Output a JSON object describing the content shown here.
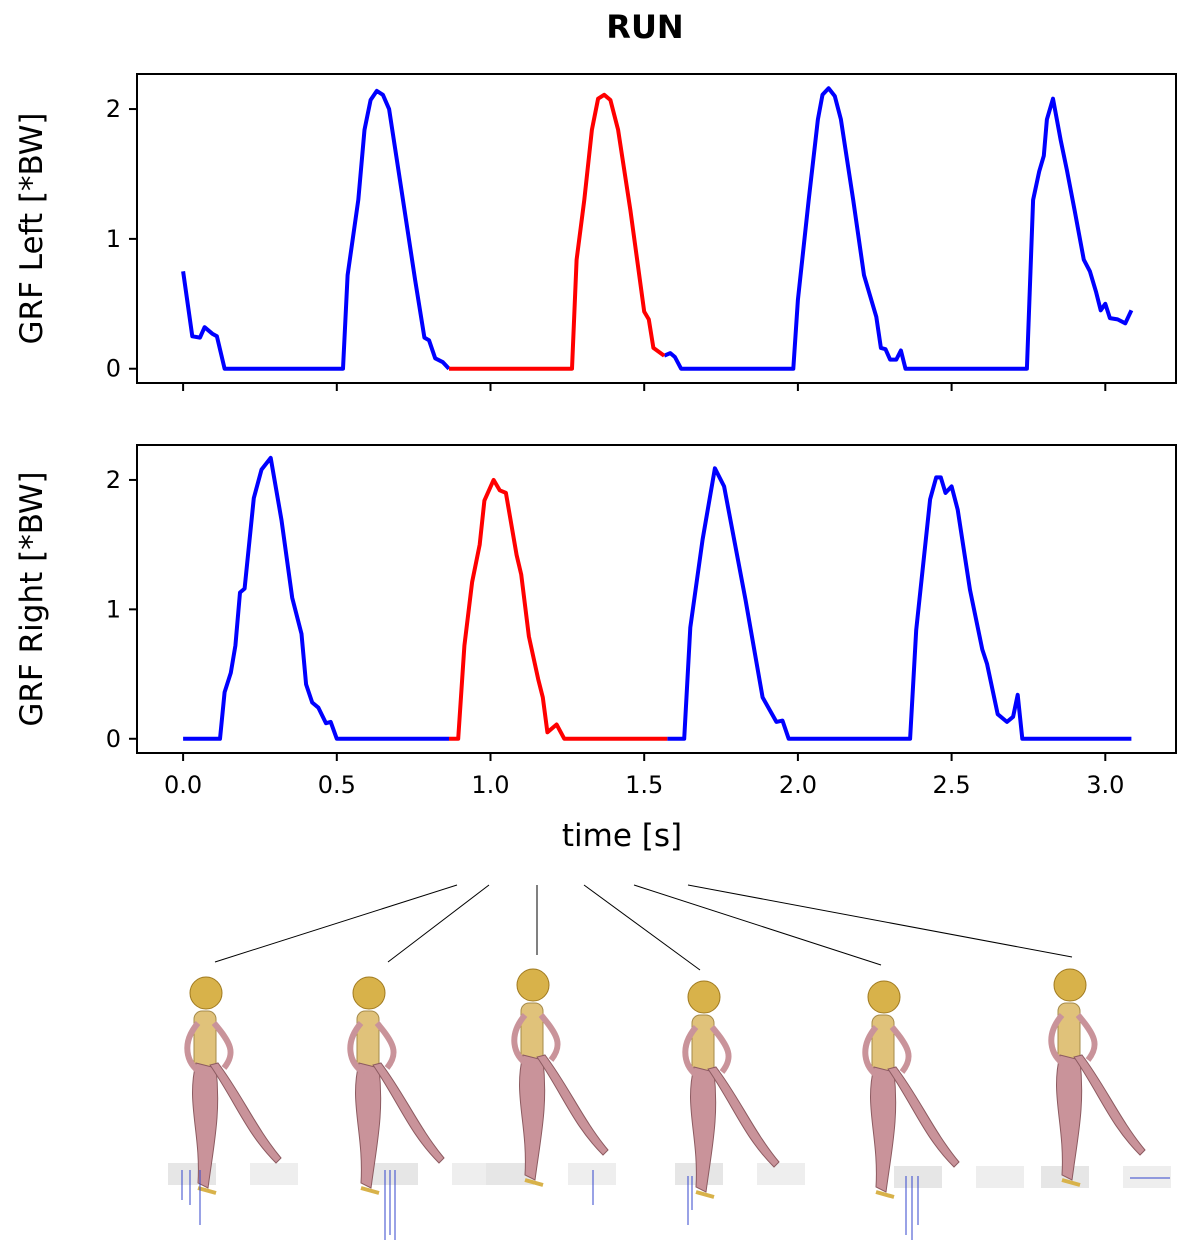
{
  "chart_data": [
    {
      "type": "line",
      "title": "RUN",
      "ylabel": "GRF Left [*BW]",
      "x": [
        0,
        0.03,
        0.055,
        0.07,
        0.095,
        0.11,
        0.135,
        0.52,
        0.535,
        0.57,
        0.59,
        0.61,
        0.63,
        0.65,
        0.67,
        0.71,
        0.755,
        0.785,
        0.8,
        0.82,
        0.845,
        0.865,
        1.265,
        1.28,
        1.305,
        1.33,
        1.35,
        1.37,
        1.39,
        1.415,
        1.455,
        1.5,
        1.515,
        1.53,
        1.565,
        1.585,
        1.6,
        1.62,
        1.985,
        2.0,
        2.035,
        2.065,
        2.08,
        2.1,
        2.12,
        2.14,
        2.18,
        2.215,
        2.255,
        2.27,
        2.285,
        2.3,
        2.32,
        2.335,
        2.35,
        2.745,
        2.765,
        2.785,
        2.8,
        2.81,
        2.83,
        2.855,
        2.875,
        2.9,
        2.93,
        2.95,
        2.97,
        2.985,
        3.0,
        3.015,
        3.04,
        3.065,
        3.085
      ],
      "series": [
        {
          "color": "#0000ff",
          "values": [
            0.75,
            0.25,
            0.24,
            0.32,
            0.27,
            0.25,
            0,
            0,
            0.72,
            1.3,
            1.84,
            2.07,
            2.14,
            2.11,
            2.0,
            1.38,
            0.68,
            0.24,
            0.22,
            0.08,
            0.05,
            0,
            null,
            null,
            null,
            null,
            null,
            null,
            null,
            null,
            null,
            null,
            null,
            null,
            0.1,
            0.12,
            0.09,
            0,
            0,
            0.53,
            1.3,
            1.92,
            2.11,
            2.16,
            2.1,
            1.92,
            1.3,
            0.72,
            0.4,
            0.16,
            0.15,
            0.07,
            0.07,
            0.14,
            0,
            0,
            1.3,
            1.52,
            1.64,
            1.92,
            2.08,
            1.76,
            1.53,
            1.22,
            0.84,
            0.75,
            0.59,
            0.45,
            0.5,
            0.39,
            0.38,
            0.35,
            0.45
          ]
        },
        {
          "color": "#ff0000",
          "values": [
            null,
            null,
            null,
            null,
            null,
            null,
            null,
            null,
            null,
            null,
            null,
            null,
            null,
            null,
            null,
            null,
            null,
            null,
            null,
            null,
            null,
            0,
            0,
            0.84,
            1.3,
            1.84,
            2.08,
            2.11,
            2.07,
            1.84,
            1.22,
            0.44,
            0.38,
            0.16,
            0.1,
            null,
            null,
            null,
            null,
            null,
            null,
            null,
            null,
            null,
            null,
            null,
            null,
            null,
            null,
            null,
            null,
            null,
            null,
            null,
            null,
            null,
            null,
            null,
            null,
            null,
            null,
            null,
            null,
            null,
            null,
            null,
            null,
            null,
            null,
            null,
            null,
            null,
            null
          ]
        }
      ],
      "xlim": [
        -0.15,
        3.23
      ],
      "xticks": [
        0,
        0.5,
        1,
        1.5,
        2,
        2.5,
        3
      ],
      "ylim": [
        -0.11,
        2.27
      ],
      "yticks": [
        0,
        1,
        2
      ]
    },
    {
      "type": "line",
      "ylabel": "GRF Right [*BW]",
      "xlabel": "time [s]",
      "x": [
        0,
        0.12,
        0.135,
        0.155,
        0.17,
        0.185,
        0.2,
        0.23,
        0.255,
        0.285,
        0.32,
        0.355,
        0.385,
        0.4,
        0.42,
        0.44,
        0.465,
        0.48,
        0.5,
        0.865,
        0.895,
        0.915,
        0.94,
        0.965,
        0.98,
        1.01,
        1.03,
        1.05,
        1.085,
        1.1,
        1.125,
        1.155,
        1.17,
        1.185,
        1.215,
        1.24,
        1.575,
        1.63,
        1.65,
        1.69,
        1.73,
        1.76,
        1.83,
        1.885,
        1.93,
        1.95,
        1.97,
        2.365,
        2.385,
        2.43,
        2.45,
        2.465,
        2.48,
        2.5,
        2.52,
        2.56,
        2.6,
        2.615,
        2.65,
        2.68,
        2.7,
        2.715,
        2.73,
        3.085
      ],
      "series": [
        {
          "color": "#0000ff",
          "values": [
            0,
            0,
            0.36,
            0.51,
            0.72,
            1.13,
            1.16,
            1.86,
            2.08,
            2.17,
            1.69,
            1.09,
            0.81,
            0.42,
            0.28,
            0.24,
            0.12,
            0.13,
            0,
            0,
            null,
            null,
            null,
            null,
            null,
            null,
            null,
            null,
            null,
            null,
            null,
            null,
            null,
            null,
            null,
            null,
            0,
            0,
            0.86,
            1.54,
            2.09,
            1.95,
            1.07,
            0.32,
            0.13,
            0.14,
            0,
            0,
            0.84,
            1.85,
            2.02,
            2.02,
            1.9,
            1.95,
            1.77,
            1.15,
            0.69,
            0.58,
            0.19,
            0.13,
            0.17,
            0.34,
            0,
            0
          ]
        },
        {
          "color": "#ff0000",
          "values": [
            null,
            null,
            null,
            null,
            null,
            null,
            null,
            null,
            null,
            null,
            null,
            null,
            null,
            null,
            null,
            null,
            null,
            null,
            null,
            0,
            0,
            0.72,
            1.21,
            1.5,
            1.84,
            2.0,
            1.92,
            1.9,
            1.42,
            1.27,
            0.79,
            0.46,
            0.32,
            0.05,
            0.11,
            0,
            0,
            null,
            null,
            null,
            null,
            null,
            null,
            null,
            null,
            null,
            null,
            null,
            null,
            null,
            null,
            null,
            null,
            null,
            null,
            null,
            null,
            null,
            null,
            null,
            null,
            null,
            null,
            null
          ]
        }
      ],
      "xlim": [
        -0.15,
        3.23
      ],
      "xticks": [
        {
          "value": 0,
          "label": "0.0"
        },
        0.5,
        {
          "value": 1,
          "label": "1.0"
        },
        1.5,
        {
          "value": 2,
          "label": "2.0"
        },
        2.5,
        {
          "value": 3,
          "label": "3.0"
        }
      ],
      "ylim": [
        -0.11,
        2.27
      ],
      "yticks": [
        0,
        1,
        2
      ]
    }
  ]
}
